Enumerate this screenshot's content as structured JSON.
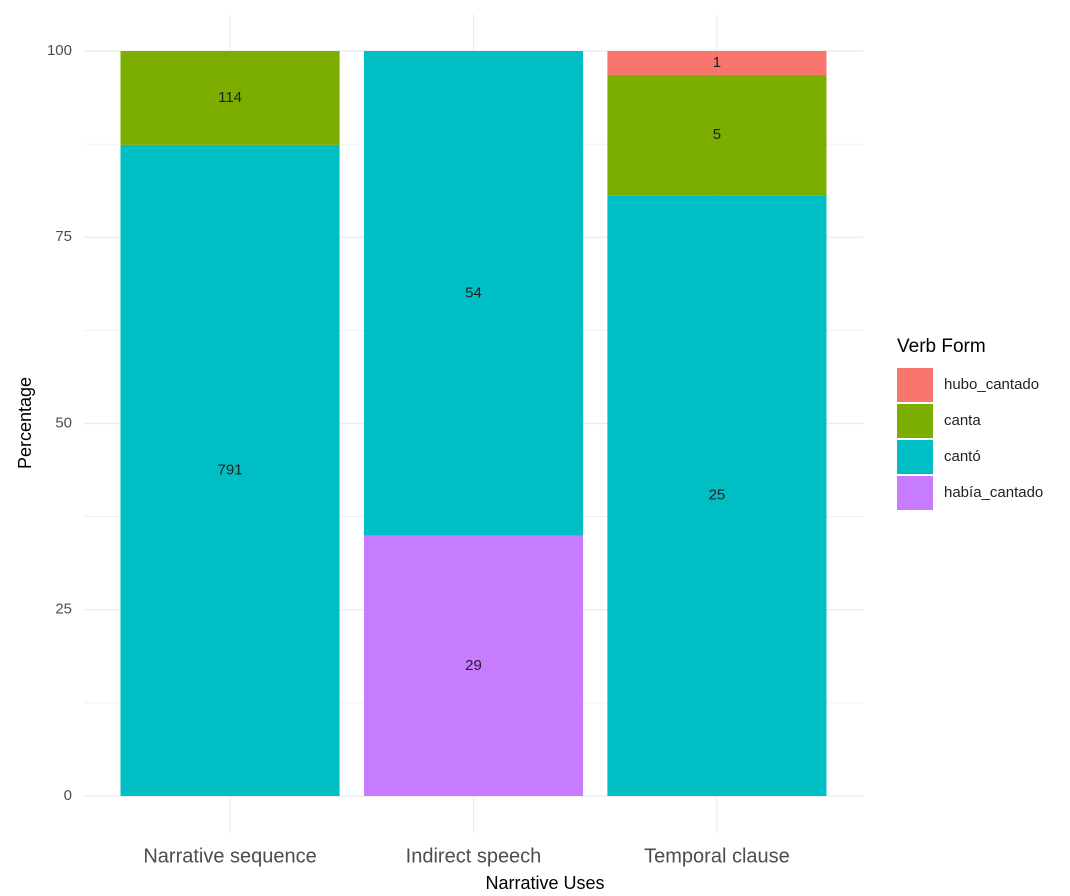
{
  "chart_data": {
    "type": "bar",
    "stacking": "percent",
    "x_label": "Narrative Uses",
    "y_label": "Percentage",
    "legend_title": "Verb Form",
    "legend": "right",
    "categories": [
      "Narrative sequence",
      "Indirect speech",
      "Temporal clause"
    ],
    "series": [
      {
        "name": "hubo_cantado",
        "color": "#F8766D",
        "values": [
          null,
          null,
          1
        ]
      },
      {
        "name": "canta",
        "color": "#7CAE00",
        "values": [
          114,
          null,
          5
        ]
      },
      {
        "name": "cantó",
        "color": "#00BFC4",
        "values": [
          791,
          54,
          25
        ]
      },
      {
        "name": "había_cantado",
        "color": "#C77CFF",
        "values": [
          null,
          29,
          null
        ]
      }
    ],
    "ylim": [
      0,
      100
    ],
    "yticks": [
      0,
      25,
      50,
      75,
      100
    ],
    "grid": true
  }
}
